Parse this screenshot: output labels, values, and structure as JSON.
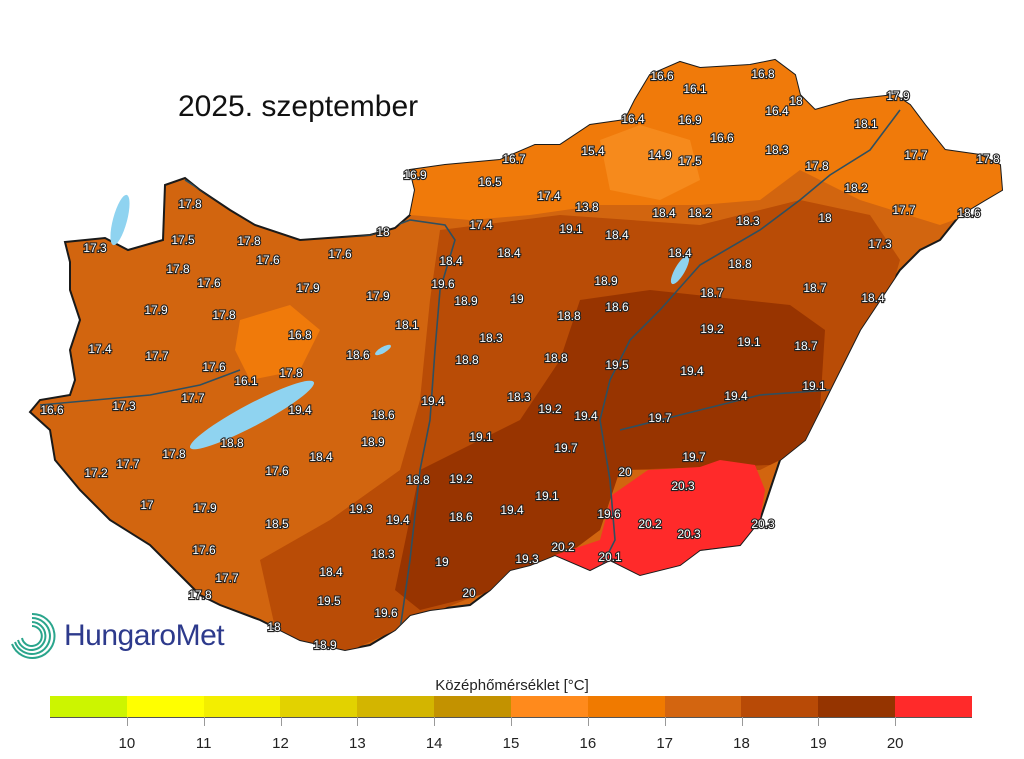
{
  "title": "2025. szeptember",
  "logo": {
    "text": "HungaroMet"
  },
  "legend": {
    "title": "Középhőmérséklet [°C]",
    "ticks": [
      "10",
      "11",
      "12",
      "13",
      "14",
      "15",
      "16",
      "17",
      "18",
      "19",
      "20"
    ],
    "colors": [
      "#ccf500",
      "#ffff00",
      "#f3ee00",
      "#e2d200",
      "#d3b500",
      "#c39200",
      "#ff8a1c",
      "#f07a00",
      "#d36510",
      "#b84a06",
      "#953400",
      "#ff2a2a"
    ]
  },
  "map_colors": {
    "base": "#d2650f",
    "north_light": "#f07a0a",
    "hill_lighter": "#f68a1c",
    "dark": "#b94c06",
    "darker": "#983400",
    "hot": "#ff2a2a",
    "lake": "#8fd3f0",
    "river": "#2f4f5f",
    "border": "#1a1a1a"
  },
  "stations": [
    "16.6",
    "16.8",
    "16.1",
    "18",
    "17.9",
    "16.4",
    "16.4",
    "16.9",
    "18.1",
    "16.6",
    "15.4",
    "14.9",
    "17.5",
    "18.3",
    "16.7",
    "17.7",
    "17.8",
    "17.8",
    "16.9",
    "16.5",
    "18.2",
    "17.4",
    "13.8",
    "18.4",
    "18.2",
    "17.7",
    "18.6",
    "18",
    "18.3",
    "17.8",
    "17.4",
    "19.1",
    "18.4",
    "18",
    "17.3",
    "17.5",
    "17.8",
    "17.6",
    "17.6",
    "18.4",
    "18.4",
    "18.4",
    "17.3",
    "17.8",
    "18.8",
    "17.6",
    "17.9",
    "17.9",
    "19.6",
    "18.9",
    "18.7",
    "18.7",
    "18.4",
    "18.9",
    "19",
    "17.9",
    "17.8",
    "18.1",
    "18.8",
    "18.6",
    "19.2",
    "19.1",
    "18.7",
    "16.8",
    "18.3",
    "17.4",
    "17.7",
    "18.6",
    "18.8",
    "18.8",
    "19.5",
    "19.4",
    "17.6",
    "16.1",
    "17.8",
    "19.1",
    "17.7",
    "17.3",
    "16.6",
    "19.4",
    "18.6",
    "19.4",
    "18.3",
    "19.2",
    "19.4",
    "19.4",
    "19.7",
    "18.8",
    "17.8",
    "18.9",
    "18.4",
    "19.1",
    "19.7",
    "17.7",
    "17.2",
    "17.6",
    "20",
    "19.7",
    "20.3",
    "18.8",
    "19.2",
    "19.1",
    "17",
    "17.9",
    "19.3",
    "19.4",
    "18.6",
    "19.4",
    "19.6",
    "20.2",
    "20.3",
    "18.5",
    "20.3",
    "20.2",
    "20.1",
    "17.6",
    "18.3",
    "19",
    "19.3",
    "17.7",
    "18.4",
    "17.8",
    "19.5",
    "20",
    "19.6",
    "18",
    "18.9"
  ]
}
